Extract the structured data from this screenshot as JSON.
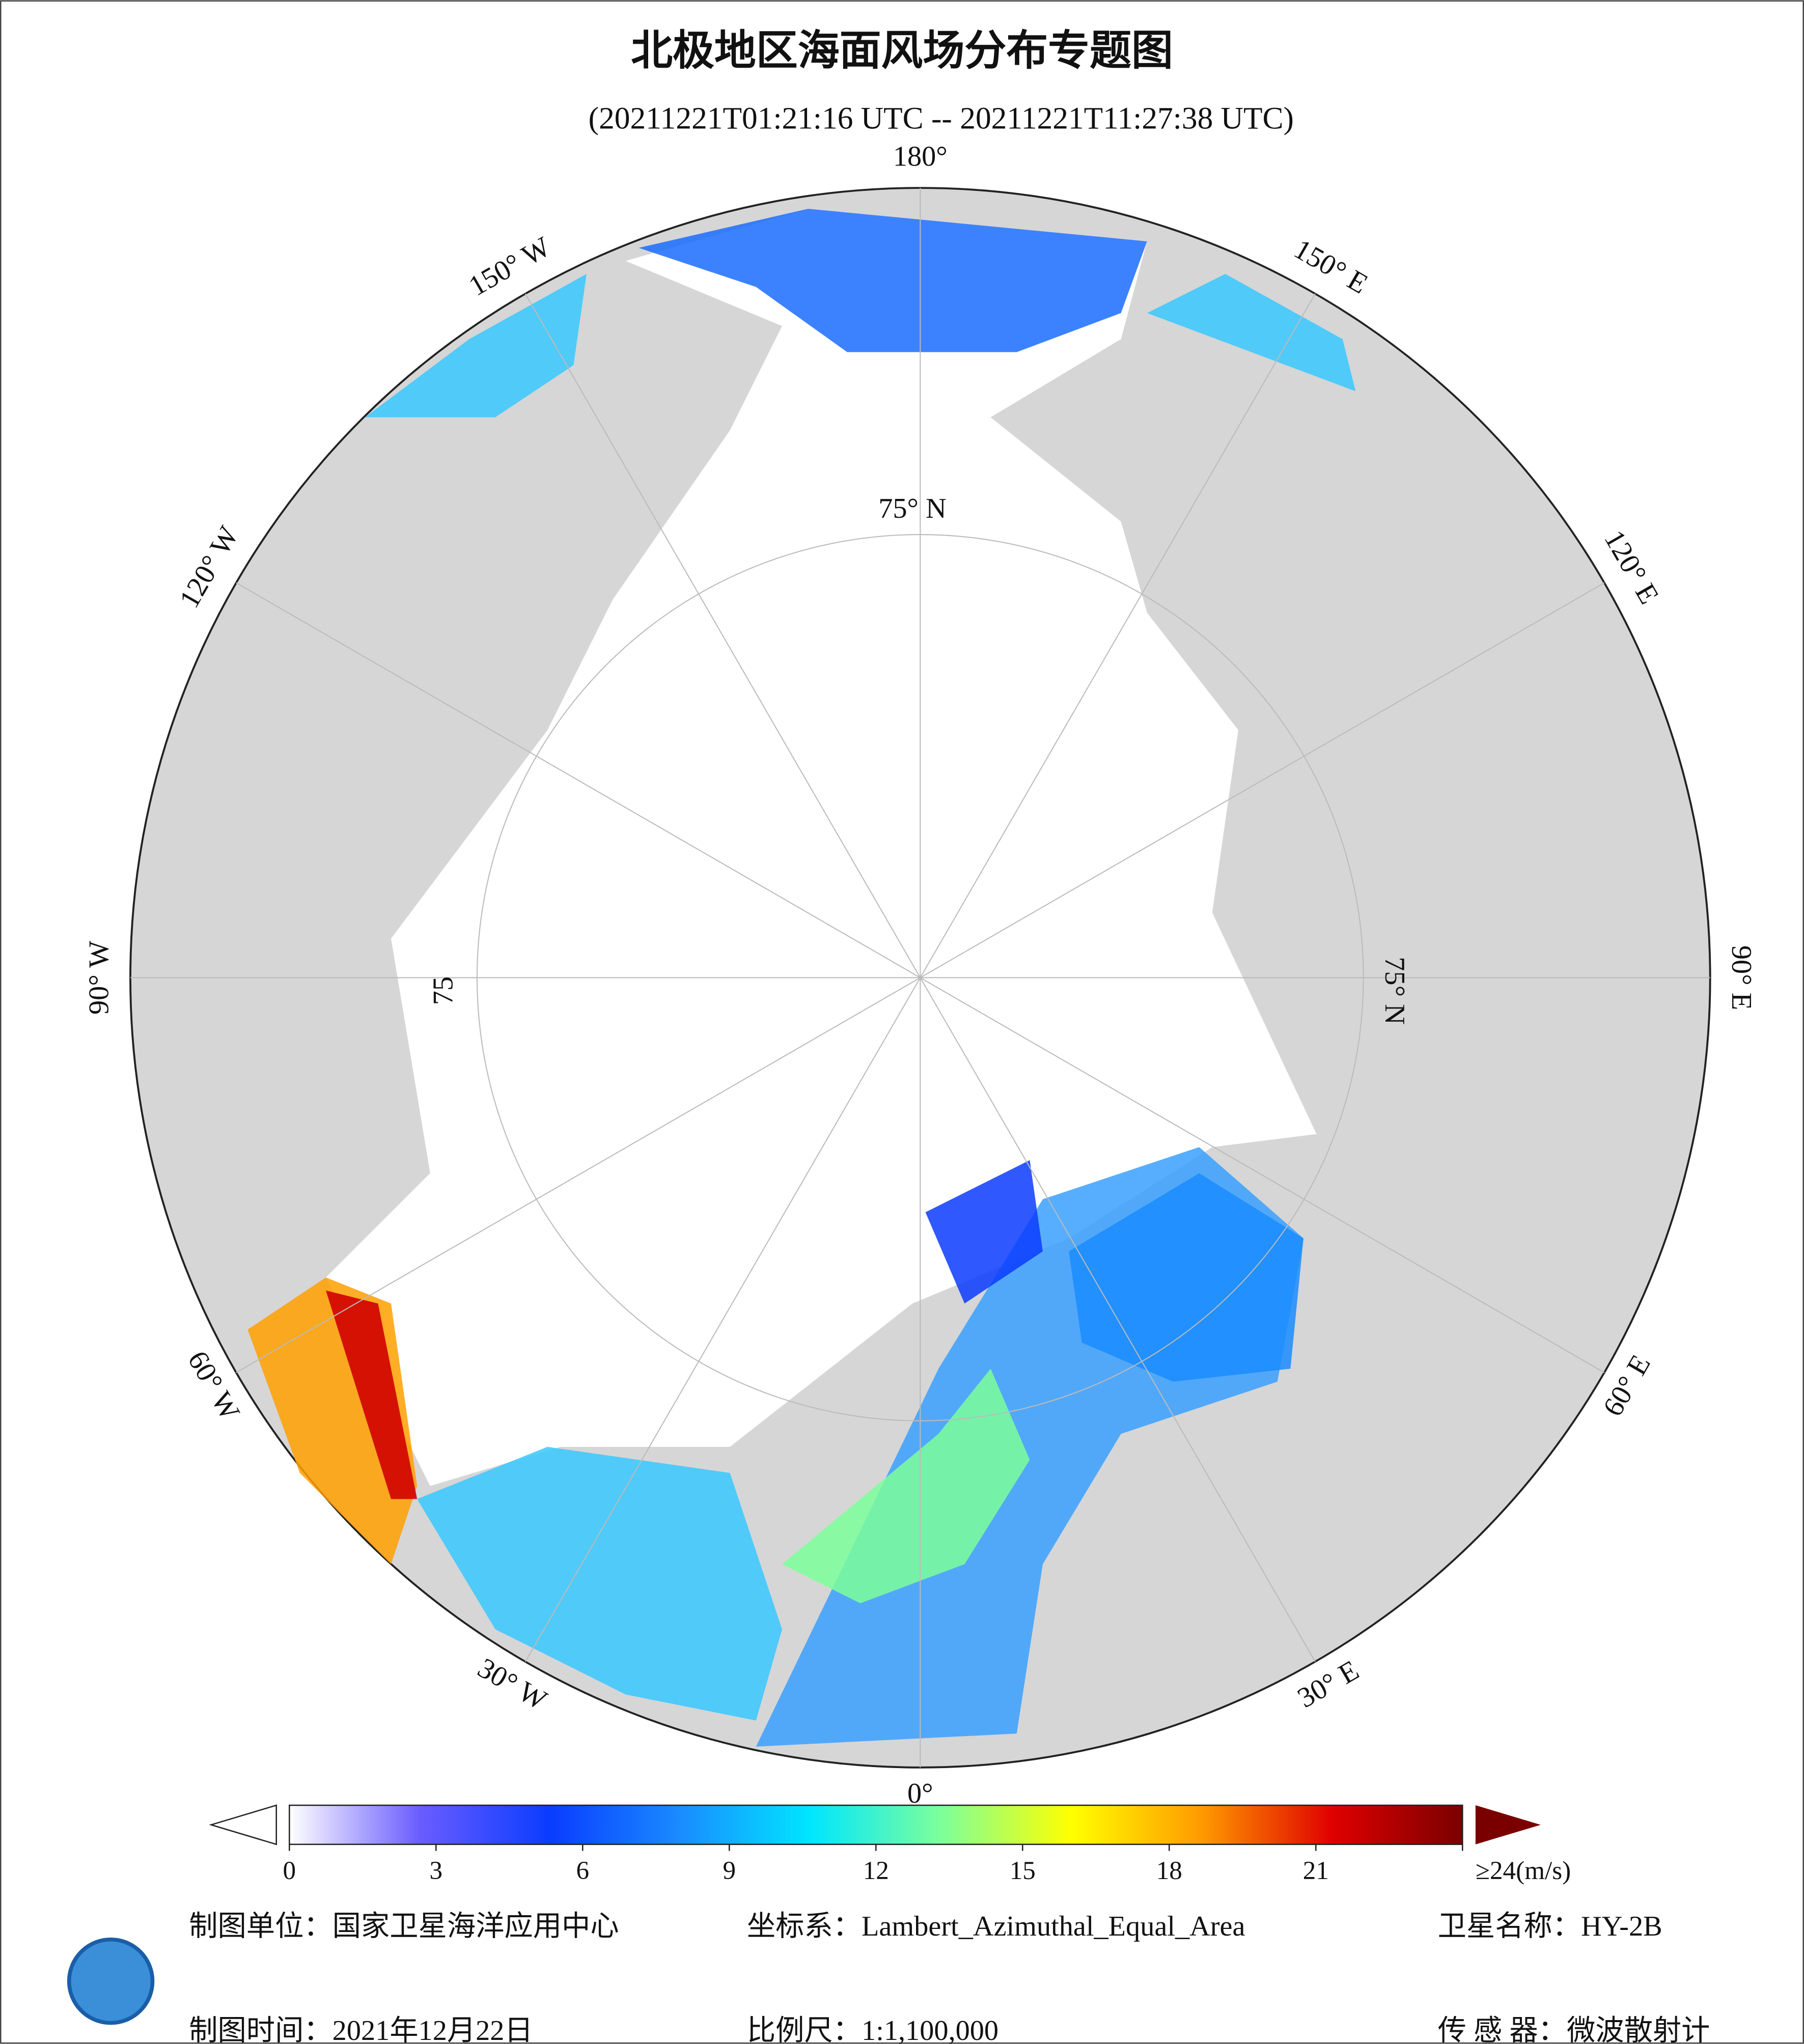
{
  "header": {
    "title": "北极地区海面风场分布专题图",
    "subtitle": "(20211221T01:21:16 UTC -- 20211221T11:27:38 UTC)"
  },
  "map": {
    "longitude_labels": [
      "180°",
      "150° E",
      "120° E",
      "90° E",
      "60° E",
      "30° E",
      "0°",
      "30° W",
      "60° W",
      "90° W",
      "120° W",
      "150° W"
    ],
    "latitude_labels": [
      "75° N",
      "75° N",
      "75"
    ]
  },
  "colorbar": {
    "lim": [
      0,
      24
    ],
    "ticks": [
      0,
      3,
      6,
      9,
      12,
      15,
      18,
      21,
      {
        "value": 24,
        "label": "≥24(m/s)"
      }
    ],
    "colors": [
      "#ffffff",
      "#6a5cff",
      "#0a3cff",
      "#1a8cff",
      "#00e6ff",
      "#7dff9a",
      "#ffff00",
      "#ff9a00",
      "#e00000",
      "#7a0000"
    ]
  },
  "footer": {
    "unit": "制图单位：国家卫星海洋应用中心",
    "projection": "坐标系：Lambert_Azimuthal_Equal_Area",
    "satellite": "卫星名称：HY-2B",
    "date": "制图时间：2021年12月22日",
    "scale": "比例尺：1:1,100,000",
    "sensor": "传 感 器：微波散射计"
  }
}
